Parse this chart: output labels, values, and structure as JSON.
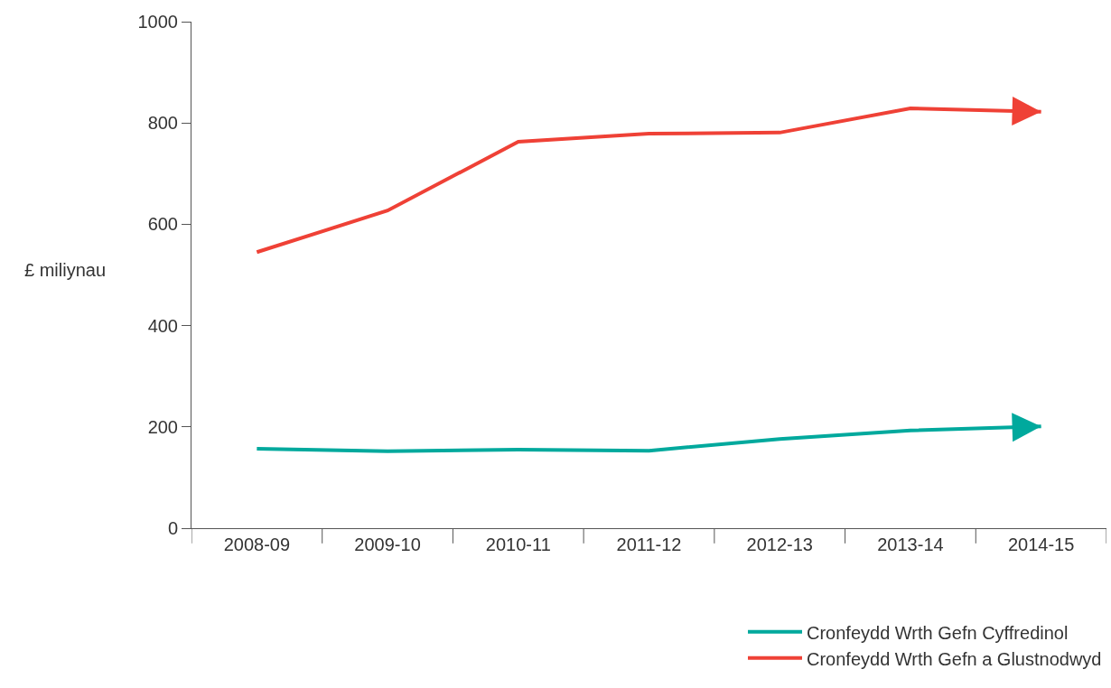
{
  "chart_data": {
    "type": "line",
    "ylabel": "£ miliynau",
    "categories": [
      "2008-09",
      "2009-10",
      "2010-11",
      "2011-12",
      "2012-13",
      "2013-14",
      "2014-15"
    ],
    "series": [
      {
        "name": "Cronfeydd Wrth Gefn Cyffredinol",
        "color": "#00a99d",
        "values": [
          157,
          152,
          155,
          153,
          176,
          193,
          201
        ]
      },
      {
        "name": "Cronfeydd Wrth Gefn a Glustnodwyd",
        "color": "#ef4136",
        "values": [
          545,
          627,
          763,
          779,
          781,
          829,
          822
        ]
      }
    ],
    "ylim": [
      0,
      1000
    ],
    "yticks": [
      0,
      200,
      400,
      600,
      800,
      1000
    ],
    "grid": false,
    "legend": "bottom right",
    "marker": "none",
    "line_style": "solid"
  }
}
